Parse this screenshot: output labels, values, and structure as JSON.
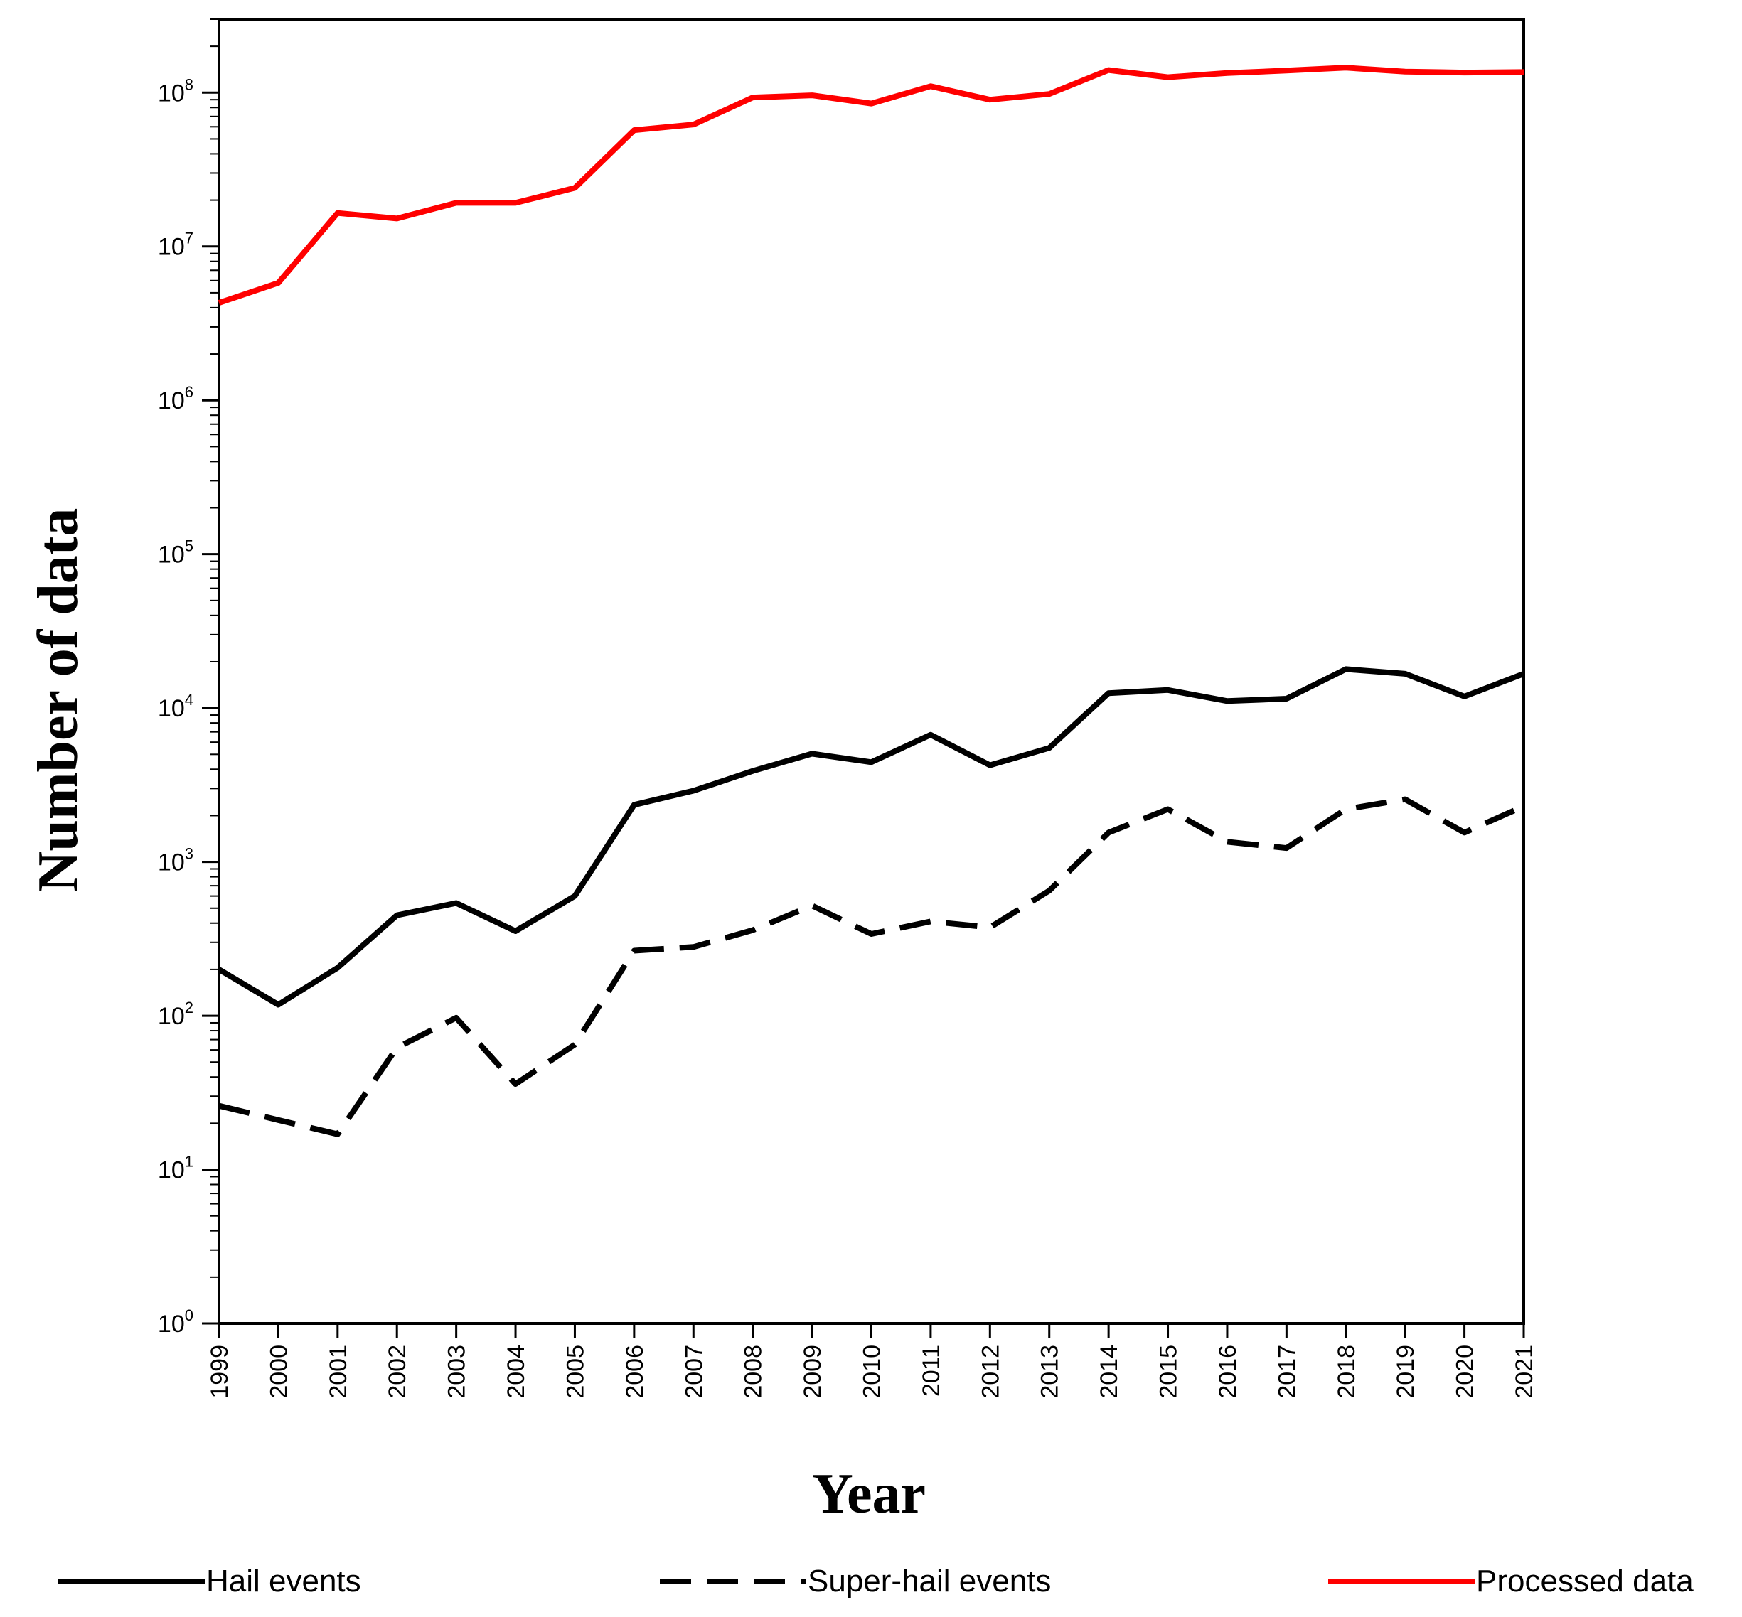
{
  "chart_data": {
    "type": "line",
    "xlabel": "Year",
    "ylabel": "Number of data",
    "yscale": "log",
    "ylim": [
      1,
      300000000
    ],
    "xlim": [
      1999,
      2021
    ],
    "y_ticks": [
      {
        "base": "10",
        "exp": "0",
        "value": 1
      },
      {
        "base": "10",
        "exp": "1",
        "value": 10
      },
      {
        "base": "10",
        "exp": "2",
        "value": 100
      },
      {
        "base": "10",
        "exp": "3",
        "value": 1000
      },
      {
        "base": "10",
        "exp": "4",
        "value": 10000
      },
      {
        "base": "10",
        "exp": "5",
        "value": 100000
      },
      {
        "base": "10",
        "exp": "6",
        "value": 1000000
      },
      {
        "base": "10",
        "exp": "7",
        "value": 10000000
      },
      {
        "base": "10",
        "exp": "8",
        "value": 100000000
      }
    ],
    "x_tick_labels": [
      "1999",
      "2000",
      "2001",
      "2002",
      "2003",
      "2004",
      "2005",
      "2006",
      "2007",
      "2008",
      "2009",
      "2010",
      "2011",
      "2012",
      "2013",
      "2014",
      "2015",
      "2016",
      "2017",
      "2018",
      "2019",
      "2020",
      "2021"
    ],
    "x": [
      1999,
      2000,
      2001,
      2002,
      2003,
      2004,
      2005,
      2006,
      2007,
      2008,
      2009,
      2010,
      2011,
      2012,
      2013,
      2014,
      2015,
      2016,
      2017,
      2018,
      2019,
      2020,
      2021
    ],
    "legend_position": "bottom",
    "series": [
      {
        "name": "Hail events",
        "color": "#000000",
        "dash": "solid",
        "values": [
          200,
          118,
          205,
          450,
          540,
          355,
          600,
          2350,
          2900,
          3900,
          5050,
          4450,
          6700,
          4250,
          5500,
          12500,
          13100,
          11100,
          11500,
          17900,
          16700,
          11900,
          16700
        ]
      },
      {
        "name": "Super-hail events",
        "color": "#000000",
        "dash": "dashed",
        "values": [
          26,
          21,
          17,
          62,
          97,
          36,
          65,
          265,
          280,
          360,
          520,
          340,
          410,
          375,
          650,
          1550,
          2200,
          1350,
          1230,
          2200,
          2550,
          1550,
          2300
        ]
      },
      {
        "name": "Processed data",
        "color": "#ff0000",
        "dash": "solid",
        "values": [
          4300000,
          5800000,
          16500000,
          15200000,
          19200000,
          19200000,
          24000000,
          57000000,
          62000000,
          93000000,
          96000000,
          85000000,
          110000000,
          90000000,
          98000000,
          140000000,
          126000000,
          134000000,
          139000000,
          145000000,
          137000000,
          135000000,
          136000000
        ]
      }
    ]
  }
}
